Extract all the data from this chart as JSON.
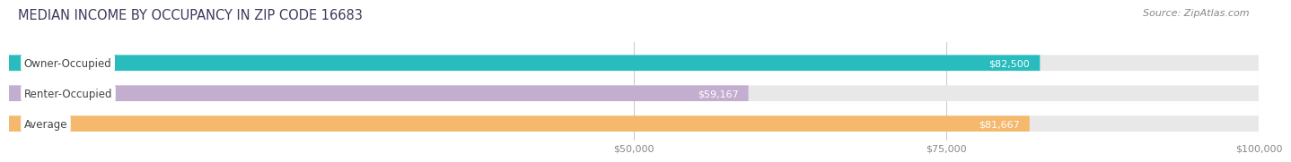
{
  "title": "MEDIAN INCOME BY OCCUPANCY IN ZIP CODE 16683",
  "source": "Source: ZipAtlas.com",
  "categories": [
    "Owner-Occupied",
    "Renter-Occupied",
    "Average"
  ],
  "values": [
    82500,
    59167,
    81667
  ],
  "labels": [
    "$82,500",
    "$59,167",
    "$81,667"
  ],
  "bar_colors": [
    "#29bcbe",
    "#c4aed0",
    "#f5b96e"
  ],
  "bar_bg_color": "#e8e8e8",
  "xmin": 0,
  "xmax": 100000,
  "xticks": [
    50000,
    75000,
    100000
  ],
  "xtick_labels": [
    "$50,000",
    "$75,000",
    "$100,000"
  ],
  "title_fontsize": 10.5,
  "source_fontsize": 8,
  "label_fontsize": 8,
  "cat_fontsize": 8.5,
  "tick_fontsize": 8,
  "background_color": "#ffffff",
  "title_color": "#3a3a5c",
  "source_color": "#888888",
  "tick_color": "#888888",
  "cat_label_color": "#444444"
}
